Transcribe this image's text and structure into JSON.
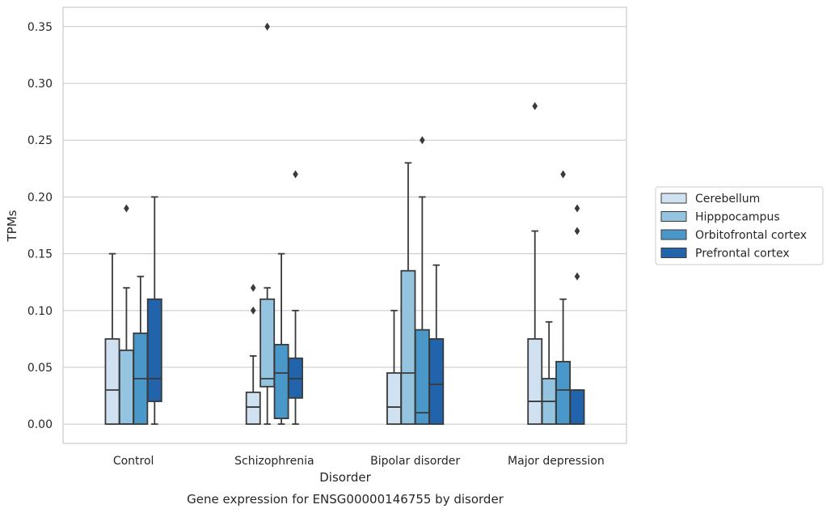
{
  "chart_data": {
    "type": "box",
    "title": "",
    "caption": "Gene expression for ENSG00000146755 by disorder",
    "xlabel": "Disorder",
    "ylabel": "TPMs",
    "ylim": [
      -0.017,
      0.367
    ],
    "yticks": [
      0.0,
      0.05,
      0.1,
      0.15,
      0.2,
      0.25,
      0.3,
      0.35
    ],
    "ytick_labels": [
      "0.00",
      "0.05",
      "0.10",
      "0.15",
      "0.20",
      "0.25",
      "0.30",
      "0.35"
    ],
    "grid": true,
    "legend_position": "right",
    "categories": [
      "Control",
      "Schizophrenia",
      "Bipolar disorder",
      "Major depression"
    ],
    "series": [
      {
        "name": "Cerebellum",
        "color": "#d0e1f2",
        "boxes": [
          {
            "whislo": 0.0,
            "q1": 0.0,
            "med": 0.03,
            "q3": 0.075,
            "whishi": 0.15,
            "fliers": []
          },
          {
            "whislo": 0.0,
            "q1": 0.0,
            "med": 0.015,
            "q3": 0.028,
            "whishi": 0.06,
            "fliers": [
              0.1,
              0.12
            ]
          },
          {
            "whislo": 0.0,
            "q1": 0.0,
            "med": 0.015,
            "q3": 0.045,
            "whishi": 0.1,
            "fliers": []
          },
          {
            "whislo": 0.0,
            "q1": 0.0,
            "med": 0.02,
            "q3": 0.075,
            "whishi": 0.17,
            "fliers": [
              0.28
            ]
          }
        ]
      },
      {
        "name": "Hipppocampus",
        "color": "#94c4df",
        "boxes": [
          {
            "whislo": 0.0,
            "q1": 0.0,
            "med": 0.0,
            "q3": 0.065,
            "whishi": 0.12,
            "fliers": [
              0.19
            ]
          },
          {
            "whislo": 0.0,
            "q1": 0.033,
            "med": 0.04,
            "q3": 0.11,
            "whishi": 0.12,
            "fliers": [
              0.35
            ]
          },
          {
            "whislo": 0.0,
            "q1": 0.0,
            "med": 0.045,
            "q3": 0.135,
            "whishi": 0.23,
            "fliers": []
          },
          {
            "whislo": 0.0,
            "q1": 0.0,
            "med": 0.02,
            "q3": 0.04,
            "whishi": 0.09,
            "fliers": []
          }
        ]
      },
      {
        "name": "Orbitofrontal cortex",
        "color": "#4a98c9",
        "boxes": [
          {
            "whislo": 0.0,
            "q1": 0.0,
            "med": 0.04,
            "q3": 0.08,
            "whishi": 0.13,
            "fliers": []
          },
          {
            "whislo": 0.0,
            "q1": 0.005,
            "med": 0.045,
            "q3": 0.07,
            "whishi": 0.15,
            "fliers": []
          },
          {
            "whislo": 0.0,
            "q1": 0.0,
            "med": 0.01,
            "q3": 0.083,
            "whishi": 0.2,
            "fliers": [
              0.25
            ]
          },
          {
            "whislo": 0.0,
            "q1": 0.0,
            "med": 0.03,
            "q3": 0.055,
            "whishi": 0.11,
            "fliers": [
              0.22
            ]
          }
        ]
      },
      {
        "name": "Prefrontal cortex",
        "color": "#2164ab",
        "boxes": [
          {
            "whislo": 0.0,
            "q1": 0.02,
            "med": 0.04,
            "q3": 0.11,
            "whishi": 0.2,
            "fliers": []
          },
          {
            "whislo": 0.0,
            "q1": 0.023,
            "med": 0.04,
            "q3": 0.058,
            "whishi": 0.1,
            "fliers": [
              0.22
            ]
          },
          {
            "whislo": 0.0,
            "q1": 0.0,
            "med": 0.035,
            "q3": 0.075,
            "whishi": 0.14,
            "fliers": []
          },
          {
            "whislo": 0.0,
            "q1": 0.0,
            "med": 0.0,
            "q3": 0.03,
            "whishi": 0.03,
            "fliers": [
              0.13,
              0.17,
              0.19
            ]
          }
        ]
      }
    ]
  }
}
